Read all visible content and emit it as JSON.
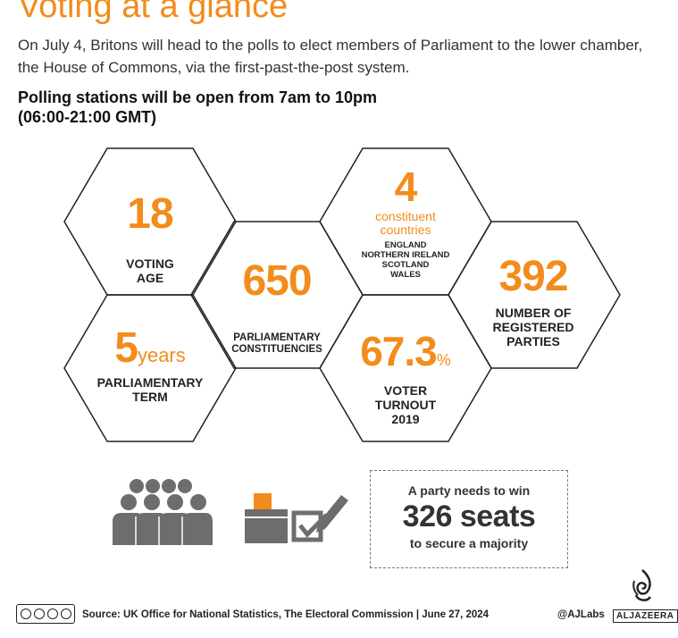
{
  "header": {
    "title": "Voting at a glance",
    "intro": "On July 4, Britons will head to the polls to elect members of Parliament to the lower chamber, the House of Commons, via the first-past-the-post system.",
    "polling": "Polling stations will be open from 7am to 10pm (06:00-21:00 GMT)"
  },
  "stats": {
    "voting_age": {
      "value": "18",
      "label_1": "VOTING",
      "label_2": "AGE"
    },
    "constituencies": {
      "value": "650",
      "label_1": "PARLIAMENTARY",
      "label_2": "CONSTITUENCIES"
    },
    "countries": {
      "value": "4",
      "sub_1": "constituent",
      "sub_2": "countries",
      "names": [
        "ENGLAND",
        "NORTHERN IRELAND",
        "SCOTLAND",
        "WALES"
      ]
    },
    "parties": {
      "value": "392",
      "label_1": "NUMBER OF",
      "label_2": "REGISTERED",
      "label_3": "PARTIES"
    },
    "term": {
      "value": "5",
      "unit": "years",
      "label_1": "PARLIAMENTARY",
      "label_2": "TERM"
    },
    "turnout": {
      "value": "67.3",
      "unit": "%",
      "label_1": "VOTER",
      "label_2": "TURNOUT",
      "label_3": "2019"
    }
  },
  "majority": {
    "line_1": "A party needs to win",
    "line_2": "326 seats",
    "line_3": "to secure a majority"
  },
  "footer": {
    "source": "Source: UK Office for National Statistics, The Electoral Commission  |  June 27, 2024",
    "handle": "@AJLabs",
    "logo": "ALJAZEERA"
  },
  "colors": {
    "accent": "#f28c1b",
    "icon": "#6d6d6d",
    "text": "#222222"
  },
  "icons": [
    "crowd-icon",
    "ballot-box-icon",
    "checkbox-pen-icon",
    "creative-commons-icon",
    "aljazeera-logo-icon"
  ]
}
